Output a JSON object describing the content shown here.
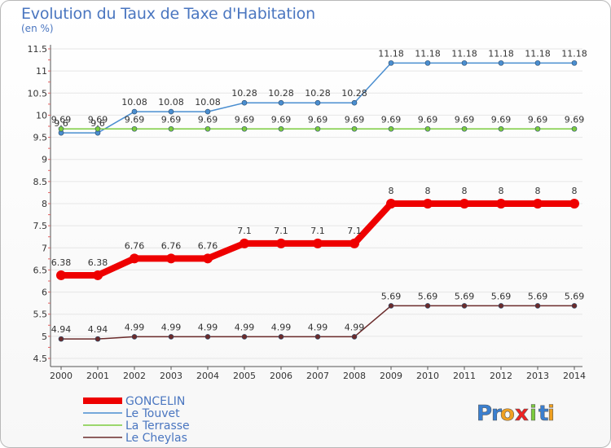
{
  "chart_data": {
    "type": "line",
    "title": "Evolution du Taux de Taxe d'Habitation",
    "ylabel": "(en %)",
    "xlabel": "",
    "categories": [
      "2000",
      "2001",
      "2002",
      "2003",
      "2004",
      "2005",
      "2006",
      "2007",
      "2008",
      "2009",
      "2010",
      "2011",
      "2012",
      "2013",
      "2014"
    ],
    "ylim": [
      4.5,
      11.5
    ],
    "yticks": [
      "4.5",
      "5",
      "5.5",
      "6",
      "6.5",
      "7",
      "7.5",
      "8",
      "8.5",
      "9",
      "9.5",
      "10",
      "10.5",
      "11",
      "11.5"
    ],
    "grid": true,
    "series": [
      {
        "name": "GONCELIN",
        "color": "#ee0000",
        "emphasis": "thick",
        "values": [
          6.38,
          6.38,
          6.76,
          6.76,
          6.76,
          7.1,
          7.1,
          7.1,
          7.1,
          8,
          8,
          8,
          8,
          8,
          8
        ],
        "labels": [
          "6.38",
          "6.38",
          "6.76",
          "6.76",
          "6.76",
          "7.1",
          "7.1",
          "7.1",
          "7.1",
          "8",
          "8",
          "8",
          "8",
          "8",
          "8"
        ]
      },
      {
        "name": "Le Touvet",
        "color": "#4a8ed0",
        "emphasis": "thin",
        "values": [
          9.6,
          9.6,
          10.08,
          10.08,
          10.08,
          10.28,
          10.28,
          10.28,
          10.28,
          11.18,
          11.18,
          11.18,
          11.18,
          11.18,
          11.18
        ],
        "labels": [
          "9.6",
          "9.6",
          "10.08",
          "10.08",
          "10.08",
          "10.28",
          "10.28",
          "10.28",
          "10.28",
          "11.18",
          "11.18",
          "11.18",
          "11.18",
          "11.18",
          "11.18"
        ]
      },
      {
        "name": "La Terrasse",
        "color": "#7ccc3e",
        "emphasis": "thin",
        "values": [
          9.69,
          9.69,
          9.69,
          9.69,
          9.69,
          9.69,
          9.69,
          9.69,
          9.69,
          9.69,
          9.69,
          9.69,
          9.69,
          9.69,
          9.69
        ],
        "labels": [
          "9.69",
          "9.69",
          "9.69",
          "9.69",
          "9.69",
          "9.69",
          "9.69",
          "9.69",
          "9.69",
          "9.69",
          "9.69",
          "9.69",
          "9.69",
          "9.69",
          "9.69"
        ]
      },
      {
        "name": "Le Cheylas",
        "color": "#6b2b2b",
        "emphasis": "thin",
        "values": [
          4.94,
          4.94,
          4.99,
          4.99,
          4.99,
          4.99,
          4.99,
          4.99,
          4.99,
          5.69,
          5.69,
          5.69,
          5.69,
          5.69,
          5.69
        ],
        "labels": [
          "4.94",
          "4.94",
          "4.99",
          "4.99",
          "4.99",
          "4.99",
          "4.99",
          "4.99",
          "4.99",
          "5.69",
          "5.69",
          "5.69",
          "5.69",
          "5.69",
          "5.69"
        ]
      }
    ],
    "legend_position": "bottom-left"
  },
  "branding": {
    "logo_text": "Proxiti",
    "logo_letters": [
      "P",
      "r",
      "o",
      "x",
      "i",
      "t",
      "i"
    ],
    "logo_colors": [
      "#3a7fd0",
      "#3a7fd0",
      "#f0a020",
      "#ee2222",
      "#7ccc3e",
      "#3a7fd0",
      "#f0a020"
    ]
  },
  "colors": {
    "axis": "#555555",
    "grid": "#e6e6e6",
    "title": "#4a76c0"
  }
}
